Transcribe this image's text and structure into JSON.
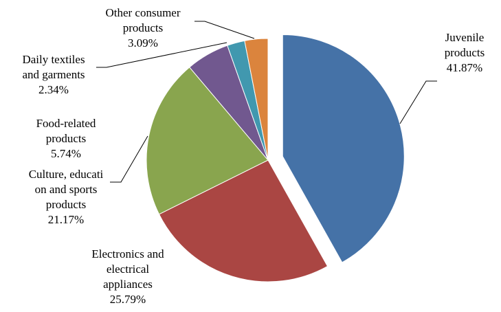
{
  "chart_data": {
    "type": "pie",
    "title": "",
    "slices": [
      {
        "label_lines": [
          "Juvenile",
          "products"
        ],
        "value": 41.87,
        "value_text": "41.87%",
        "color": "#4572A7",
        "exploded": true
      },
      {
        "label_lines": [
          "Electronics and",
          "electrical",
          "appliances"
        ],
        "value": 25.79,
        "value_text": "25.79%",
        "color": "#AA4643",
        "exploded": false
      },
      {
        "label_lines": [
          "Culture, educati",
          "on and sports",
          "products"
        ],
        "value": 21.17,
        "value_text": "21.17%",
        "color": "#89A54E",
        "exploded": false
      },
      {
        "label_lines": [
          "Food-related",
          "products"
        ],
        "value": 5.74,
        "value_text": "5.74%",
        "color": "#71588F",
        "exploded": false
      },
      {
        "label_lines": [
          "Daily textiles",
          "and garments"
        ],
        "value": 2.34,
        "value_text": "2.34%",
        "color": "#4198AF",
        "exploded": false
      },
      {
        "label_lines": [
          "Other consumer",
          "products"
        ],
        "value": 3.09,
        "value_text": "3.09%",
        "color": "#DB843D",
        "exploded": false
      }
    ],
    "legend": "none"
  }
}
